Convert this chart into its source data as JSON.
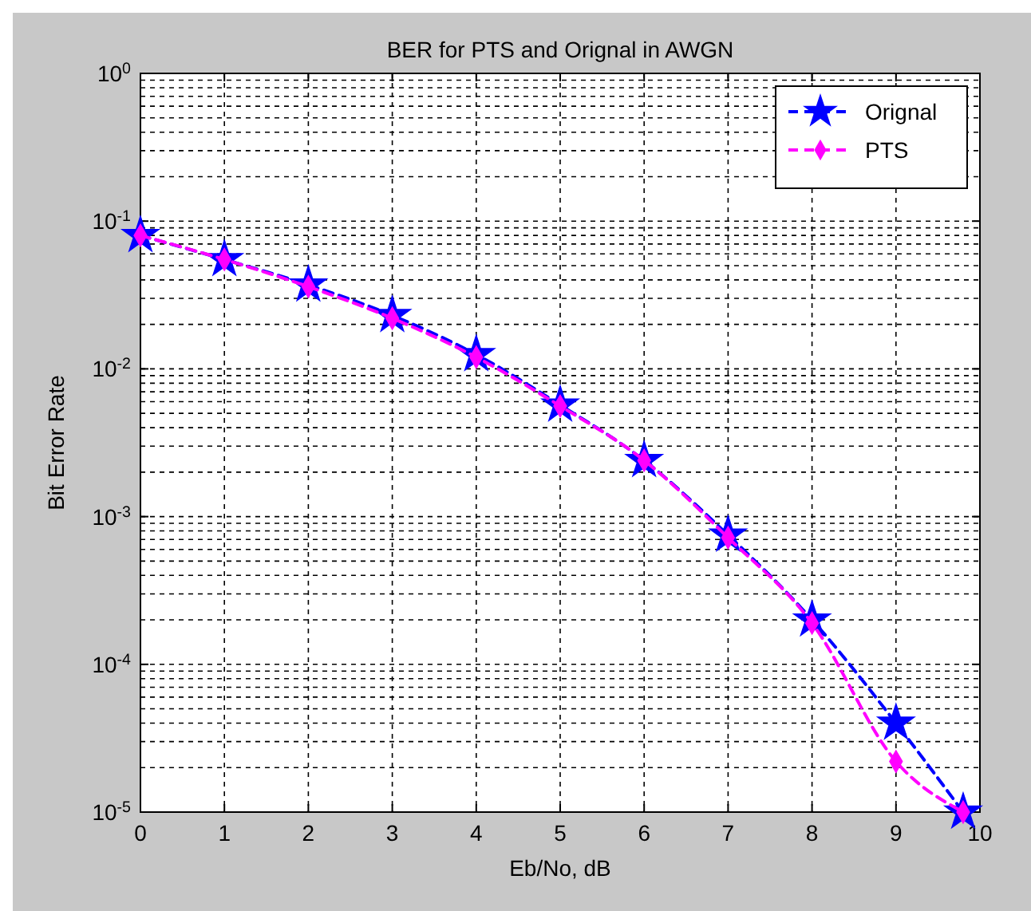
{
  "chart_data": {
    "type": "line",
    "title": "BER for PTS and Orignal in AWGN",
    "xlabel": "Eb/No, dB",
    "ylabel": "Bit Error Rate",
    "log": "y",
    "grid": true,
    "legend": "top right",
    "line_style": "dashed",
    "xlim": [
      0,
      10
    ],
    "xticks": [
      0,
      1,
      2,
      3,
      4,
      5,
      6,
      7,
      8,
      9,
      10
    ],
    "ylim": [
      1e-05,
      1
    ],
    "yticks": [
      {
        "value": 1e-05,
        "label": "10$^{-5}$"
      },
      {
        "value": 0.0001,
        "label": "10$^{-4}$"
      },
      {
        "value": 0.001,
        "label": "10$^{-3}$"
      },
      {
        "value": 0.01,
        "label": "10$^{-2}$"
      },
      {
        "value": 0.1,
        "label": "10$^{-1}$"
      },
      {
        "value": 1,
        "label": "10$^{0}$"
      }
    ],
    "x": [
      0,
      1,
      2,
      3,
      4,
      5,
      6,
      7,
      8,
      9,
      9.8
    ],
    "series": [
      {
        "name": "Orignal",
        "color": "#0000ff",
        "marker": "star",
        "values": [
          0.08,
          0.055,
          0.037,
          0.023,
          0.0125,
          0.0057,
          0.0024,
          0.00075,
          0.0002,
          4e-05,
          1e-05
        ]
      },
      {
        "name": "PTS",
        "color": "#ff00ff",
        "marker": "diamond",
        "values": [
          0.08,
          0.055,
          0.036,
          0.022,
          0.012,
          0.0056,
          0.0024,
          0.00072,
          0.00019,
          2.2e-05,
          1e-05
        ]
      }
    ]
  }
}
